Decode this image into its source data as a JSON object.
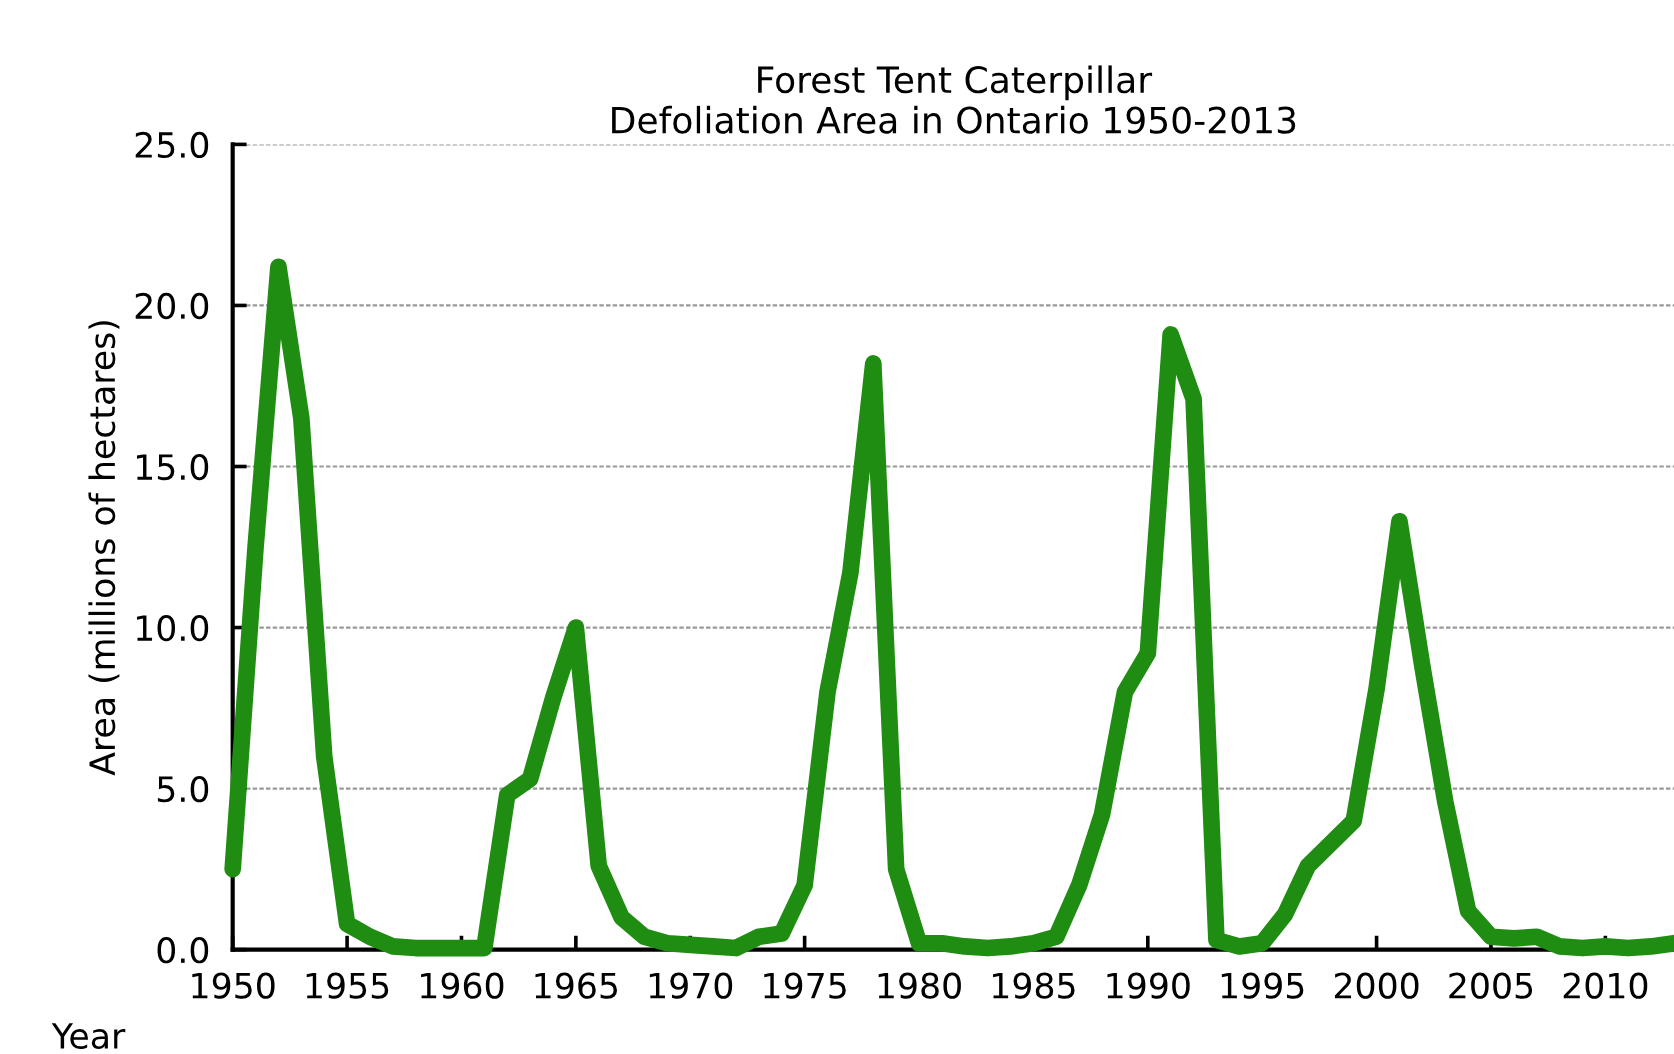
{
  "chart_data": {
    "type": "line",
    "title": "Forest Tent Caterpillar\nDefoliation Area in Ontario 1950-2013",
    "xlabel": "Year",
    "ylabel": "Area (millions of hectares)",
    "x": [
      1950,
      1951,
      1952,
      1953,
      1954,
      1955,
      1956,
      1957,
      1958,
      1959,
      1960,
      1961,
      1962,
      1963,
      1964,
      1965,
      1966,
      1967,
      1968,
      1969,
      1970,
      1971,
      1972,
      1973,
      1974,
      1975,
      1976,
      1977,
      1978,
      1979,
      1980,
      1981,
      1982,
      1983,
      1984,
      1985,
      1986,
      1987,
      1988,
      1989,
      1990,
      1991,
      1992,
      1993,
      1994,
      1995,
      1996,
      1997,
      1998,
      1999,
      2000,
      2001,
      2002,
      2003,
      2004,
      2005,
      2006,
      2007,
      2008,
      2009,
      2010,
      2011,
      2012,
      2013
    ],
    "series": [
      {
        "color": "#1f8c12",
        "values": [
          2.5,
          12.5,
          21.2,
          16.5,
          6.0,
          0.8,
          0.4,
          0.1,
          0.05,
          0.05,
          0.05,
          0.05,
          4.8,
          5.3,
          7.8,
          10.0,
          2.6,
          1.0,
          0.4,
          0.2,
          0.15,
          0.1,
          0.05,
          0.4,
          0.5,
          2.0,
          8.0,
          11.7,
          18.2,
          2.5,
          0.2,
          0.2,
          0.1,
          0.05,
          0.1,
          0.2,
          0.4,
          2.0,
          4.2,
          8.0,
          9.2,
          19.1,
          17.1,
          0.3,
          0.1,
          0.2,
          1.1,
          2.6,
          3.3,
          4.0,
          8.1,
          13.3,
          8.8,
          4.6,
          1.2,
          0.4,
          0.35,
          0.4,
          0.1,
          0.05,
          0.1,
          0.05,
          0.1,
          0.2
        ]
      }
    ],
    "xlim": [
      1950,
      2013
    ],
    "xticks": [
      1950,
      1955,
      1960,
      1965,
      1970,
      1975,
      1980,
      1985,
      1990,
      1995,
      2000,
      2005,
      2010
    ],
    "ylim": [
      0,
      25
    ],
    "yticks": [
      {
        "value": 0,
        "label": "0.0"
      },
      {
        "value": 5,
        "label": "5.0"
      },
      {
        "value": 10,
        "label": "10.0"
      },
      {
        "value": 15,
        "label": "15.0"
      },
      {
        "value": 20,
        "label": "20.0"
      },
      {
        "value": 25,
        "label": "25.0"
      }
    ],
    "grid": "y",
    "line_style": "solid",
    "marker": "none"
  }
}
